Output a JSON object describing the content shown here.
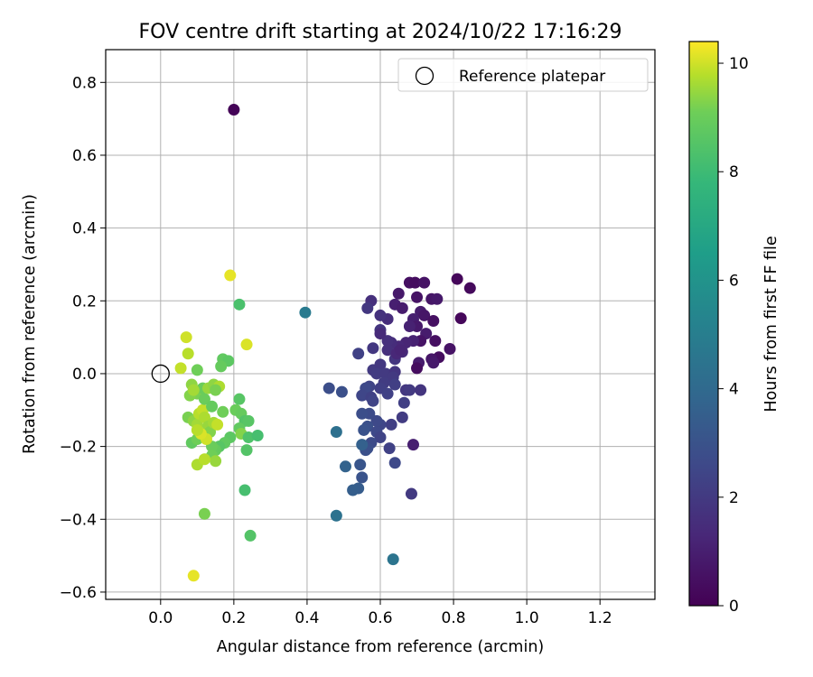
{
  "chart_data": {
    "type": "scatter",
    "title": "FOV centre drift starting at 2024/10/22 17:16:29",
    "xlabel": "Angular distance from reference (arcmin)",
    "ylabel": "Rotation from reference (arcmin)",
    "xlim": [
      -0.15,
      1.35
    ],
    "ylim": [
      -0.62,
      0.89
    ],
    "xticks": [
      0.0,
      0.2,
      0.4,
      0.6,
      0.8,
      1.0,
      1.2
    ],
    "xtick_labels": [
      "0.0",
      "0.2",
      "0.4",
      "0.6",
      "0.8",
      "1.0",
      "1.2"
    ],
    "yticks": [
      -0.6,
      -0.4,
      -0.2,
      0.0,
      0.2,
      0.4,
      0.6,
      0.8
    ],
    "ytick_labels": [
      "−0.6",
      "−0.4",
      "−0.2",
      "0.0",
      "0.2",
      "0.4",
      "0.6",
      "0.8"
    ],
    "grid": true,
    "legend": {
      "position": "top-right",
      "entries": [
        {
          "label": "Reference platepar",
          "marker": "open-circle"
        }
      ]
    },
    "reference_point": {
      "x": 0.0,
      "y": 0.0
    },
    "colorbar": {
      "label": "Hours from first FF file",
      "colormap": "viridis",
      "range": [
        0,
        10.4
      ],
      "ticks": [
        0,
        2,
        4,
        6,
        8,
        10
      ],
      "tick_labels": [
        "0",
        "2",
        "4",
        "6",
        "8",
        "10"
      ]
    },
    "points": [
      {
        "x": 0.2,
        "y": 0.725,
        "c": 0.1
      },
      {
        "x": 0.81,
        "y": 0.26,
        "c": 0.2
      },
      {
        "x": 0.845,
        "y": 0.235,
        "c": 0.3
      },
      {
        "x": 0.82,
        "y": 0.152,
        "c": 0.2
      },
      {
        "x": 0.68,
        "y": 0.25,
        "c": 0.5
      },
      {
        "x": 0.695,
        "y": 0.25,
        "c": 0.4
      },
      {
        "x": 0.72,
        "y": 0.25,
        "c": 0.6
      },
      {
        "x": 0.65,
        "y": 0.22,
        "c": 0.8
      },
      {
        "x": 0.64,
        "y": 0.19,
        "c": 1.0
      },
      {
        "x": 0.66,
        "y": 0.18,
        "c": 0.9
      },
      {
        "x": 0.74,
        "y": 0.205,
        "c": 0.7
      },
      {
        "x": 0.755,
        "y": 0.205,
        "c": 0.8
      },
      {
        "x": 0.7,
        "y": 0.21,
        "c": 0.6
      },
      {
        "x": 0.71,
        "y": 0.17,
        "c": 0.9
      },
      {
        "x": 0.72,
        "y": 0.16,
        "c": 0.7
      },
      {
        "x": 0.69,
        "y": 0.15,
        "c": 1.0
      },
      {
        "x": 0.745,
        "y": 0.145,
        "c": 0.5
      },
      {
        "x": 0.7,
        "y": 0.13,
        "c": 0.8
      },
      {
        "x": 0.68,
        "y": 0.13,
        "c": 1.1
      },
      {
        "x": 0.725,
        "y": 0.11,
        "c": 0.9
      },
      {
        "x": 0.71,
        "y": 0.09,
        "c": 0.6
      },
      {
        "x": 0.75,
        "y": 0.09,
        "c": 0.5
      },
      {
        "x": 0.79,
        "y": 0.068,
        "c": 0.6
      },
      {
        "x": 0.76,
        "y": 0.045,
        "c": 0.4
      },
      {
        "x": 0.74,
        "y": 0.04,
        "c": 0.7
      },
      {
        "x": 0.745,
        "y": 0.03,
        "c": 0.8
      },
      {
        "x": 0.705,
        "y": 0.03,
        "c": 0.9
      },
      {
        "x": 0.7,
        "y": 0.015,
        "c": 0.4
      },
      {
        "x": 0.69,
        "y": 0.09,
        "c": 1.1
      },
      {
        "x": 0.67,
        "y": 0.085,
        "c": 1.2
      },
      {
        "x": 0.65,
        "y": 0.075,
        "c": 1.3
      },
      {
        "x": 0.63,
        "y": 0.085,
        "c": 1.5
      },
      {
        "x": 0.62,
        "y": 0.09,
        "c": 1.6
      },
      {
        "x": 0.62,
        "y": 0.065,
        "c": 1.6
      },
      {
        "x": 0.66,
        "y": 0.06,
        "c": 1.4
      },
      {
        "x": 0.64,
        "y": 0.04,
        "c": 1.8
      },
      {
        "x": 0.645,
        "y": 0.055,
        "c": 1.3
      },
      {
        "x": 0.655,
        "y": 0.065,
        "c": 1.2
      },
      {
        "x": 0.62,
        "y": 0.15,
        "c": 1.5
      },
      {
        "x": 0.6,
        "y": 0.16,
        "c": 1.7
      },
      {
        "x": 0.575,
        "y": 0.2,
        "c": 1.6
      },
      {
        "x": 0.565,
        "y": 0.18,
        "c": 1.9
      },
      {
        "x": 0.6,
        "y": 0.12,
        "c": 1.8
      },
      {
        "x": 0.6,
        "y": 0.11,
        "c": 1.4
      },
      {
        "x": 0.58,
        "y": 0.07,
        "c": 1.9
      },
      {
        "x": 0.54,
        "y": 0.055,
        "c": 2.3
      },
      {
        "x": 0.58,
        "y": 0.01,
        "c": 2.0
      },
      {
        "x": 0.6,
        "y": 0.025,
        "c": 1.9
      },
      {
        "x": 0.59,
        "y": 0.0,
        "c": 2.1
      },
      {
        "x": 0.615,
        "y": 0.0,
        "c": 2.0
      },
      {
        "x": 0.64,
        "y": 0.005,
        "c": 1.8
      },
      {
        "x": 0.635,
        "y": -0.01,
        "c": 2.0
      },
      {
        "x": 0.64,
        "y": -0.03,
        "c": 2.2
      },
      {
        "x": 0.61,
        "y": -0.025,
        "c": 2.1
      },
      {
        "x": 0.6,
        "y": -0.04,
        "c": 2.2
      },
      {
        "x": 0.57,
        "y": -0.035,
        "c": 2.4
      },
      {
        "x": 0.56,
        "y": -0.04,
        "c": 2.6
      },
      {
        "x": 0.55,
        "y": -0.06,
        "c": 2.5
      },
      {
        "x": 0.575,
        "y": -0.065,
        "c": 2.3
      },
      {
        "x": 0.58,
        "y": -0.075,
        "c": 2.4
      },
      {
        "x": 0.62,
        "y": -0.055,
        "c": 2.3
      },
      {
        "x": 0.67,
        "y": -0.045,
        "c": 1.9
      },
      {
        "x": 0.68,
        "y": -0.045,
        "c": 2.0
      },
      {
        "x": 0.71,
        "y": -0.045,
        "c": 1.8
      },
      {
        "x": 0.665,
        "y": -0.08,
        "c": 2.2
      },
      {
        "x": 0.66,
        "y": -0.12,
        "c": 2.1
      },
      {
        "x": 0.63,
        "y": -0.14,
        "c": 2.2
      },
      {
        "x": 0.6,
        "y": -0.14,
        "c": 2.5
      },
      {
        "x": 0.59,
        "y": -0.13,
        "c": 2.6
      },
      {
        "x": 0.57,
        "y": -0.11,
        "c": 2.7
      },
      {
        "x": 0.55,
        "y": -0.11,
        "c": 2.8
      },
      {
        "x": 0.565,
        "y": -0.145,
        "c": 2.9
      },
      {
        "x": 0.555,
        "y": -0.155,
        "c": 3.0
      },
      {
        "x": 0.59,
        "y": -0.16,
        "c": 2.6
      },
      {
        "x": 0.6,
        "y": -0.175,
        "c": 2.4
      },
      {
        "x": 0.575,
        "y": -0.19,
        "c": 2.7
      },
      {
        "x": 0.565,
        "y": -0.205,
        "c": 2.8
      },
      {
        "x": 0.56,
        "y": -0.21,
        "c": 2.9
      },
      {
        "x": 0.625,
        "y": -0.205,
        "c": 2.3
      },
      {
        "x": 0.69,
        "y": -0.195,
        "c": 1.0
      },
      {
        "x": 0.64,
        "y": -0.245,
        "c": 2.6
      },
      {
        "x": 0.685,
        "y": -0.33,
        "c": 2.0
      },
      {
        "x": 0.46,
        "y": -0.04,
        "c": 2.8
      },
      {
        "x": 0.495,
        "y": -0.05,
        "c": 2.9
      },
      {
        "x": 0.545,
        "y": -0.25,
        "c": 3.1
      },
      {
        "x": 0.55,
        "y": -0.285,
        "c": 3.0
      },
      {
        "x": 0.54,
        "y": -0.315,
        "c": 3.4
      },
      {
        "x": 0.525,
        "y": -0.32,
        "c": 3.5
      },
      {
        "x": 0.505,
        "y": -0.255,
        "c": 3.7
      },
      {
        "x": 0.55,
        "y": -0.195,
        "c": 3.6
      },
      {
        "x": 0.48,
        "y": -0.16,
        "c": 4.3
      },
      {
        "x": 0.48,
        "y": -0.39,
        "c": 4.4
      },
      {
        "x": 0.635,
        "y": -0.51,
        "c": 4.5
      },
      {
        "x": 0.395,
        "y": 0.168,
        "c": 4.8
      },
      {
        "x": 0.19,
        "y": 0.27,
        "c": 10.2
      },
      {
        "x": 0.215,
        "y": 0.19,
        "c": 8.3
      },
      {
        "x": 0.235,
        "y": 0.08,
        "c": 10.1
      },
      {
        "x": 0.07,
        "y": 0.1,
        "c": 10.0
      },
      {
        "x": 0.075,
        "y": 0.055,
        "c": 9.8
      },
      {
        "x": 0.1,
        "y": 0.01,
        "c": 9.1
      },
      {
        "x": 0.1,
        "y": -0.055,
        "c": 9.2
      },
      {
        "x": 0.115,
        "y": -0.04,
        "c": 9.0
      },
      {
        "x": 0.08,
        "y": -0.06,
        "c": 9.3
      },
      {
        "x": 0.085,
        "y": -0.03,
        "c": 9.4
      },
      {
        "x": 0.09,
        "y": -0.045,
        "c": 9.6
      },
      {
        "x": 0.13,
        "y": -0.04,
        "c": 9.5
      },
      {
        "x": 0.145,
        "y": -0.03,
        "c": 9.4
      },
      {
        "x": 0.16,
        "y": -0.035,
        "c": 9.7
      },
      {
        "x": 0.15,
        "y": -0.045,
        "c": 9.2
      },
      {
        "x": 0.17,
        "y": 0.04,
        "c": 8.8
      },
      {
        "x": 0.185,
        "y": 0.035,
        "c": 8.7
      },
      {
        "x": 0.165,
        "y": 0.02,
        "c": 8.9
      },
      {
        "x": 0.215,
        "y": -0.07,
        "c": 8.6
      },
      {
        "x": 0.205,
        "y": -0.1,
        "c": 9.0
      },
      {
        "x": 0.22,
        "y": -0.11,
        "c": 8.9
      },
      {
        "x": 0.23,
        "y": -0.13,
        "c": 8.5
      },
      {
        "x": 0.24,
        "y": -0.13,
        "c": 8.6
      },
      {
        "x": 0.215,
        "y": -0.15,
        "c": 8.8
      },
      {
        "x": 0.22,
        "y": -0.165,
        "c": 9.3
      },
      {
        "x": 0.24,
        "y": -0.175,
        "c": 8.4
      },
      {
        "x": 0.265,
        "y": -0.17,
        "c": 8.2
      },
      {
        "x": 0.235,
        "y": -0.21,
        "c": 8.5
      },
      {
        "x": 0.19,
        "y": -0.175,
        "c": 8.7
      },
      {
        "x": 0.175,
        "y": -0.19,
        "c": 8.8
      },
      {
        "x": 0.16,
        "y": -0.2,
        "c": 8.6
      },
      {
        "x": 0.15,
        "y": -0.21,
        "c": 8.9
      },
      {
        "x": 0.14,
        "y": -0.2,
        "c": 9.0
      },
      {
        "x": 0.14,
        "y": -0.225,
        "c": 9.1
      },
      {
        "x": 0.15,
        "y": -0.24,
        "c": 9.5
      },
      {
        "x": 0.1,
        "y": -0.25,
        "c": 9.7
      },
      {
        "x": 0.12,
        "y": -0.235,
        "c": 9.8
      },
      {
        "x": 0.085,
        "y": -0.19,
        "c": 8.8
      },
      {
        "x": 0.1,
        "y": -0.18,
        "c": 9.1
      },
      {
        "x": 0.075,
        "y": -0.12,
        "c": 9.2
      },
      {
        "x": 0.09,
        "y": -0.13,
        "c": 9.4
      },
      {
        "x": 0.1,
        "y": -0.14,
        "c": 9.6
      },
      {
        "x": 0.105,
        "y": -0.11,
        "c": 9.8
      },
      {
        "x": 0.115,
        "y": -0.1,
        "c": 9.9
      },
      {
        "x": 0.12,
        "y": -0.12,
        "c": 9.7
      },
      {
        "x": 0.13,
        "y": -0.145,
        "c": 9.5
      },
      {
        "x": 0.135,
        "y": -0.16,
        "c": 9.3
      },
      {
        "x": 0.145,
        "y": -0.135,
        "c": 9.6
      },
      {
        "x": 0.155,
        "y": -0.14,
        "c": 9.9
      },
      {
        "x": 0.125,
        "y": -0.18,
        "c": 10.0
      },
      {
        "x": 0.11,
        "y": -0.165,
        "c": 10.1
      },
      {
        "x": 0.1,
        "y": -0.155,
        "c": 9.8
      },
      {
        "x": 0.12,
        "y": -0.07,
        "c": 9.0
      },
      {
        "x": 0.14,
        "y": -0.09,
        "c": 8.9
      },
      {
        "x": 0.17,
        "y": -0.105,
        "c": 9.1
      },
      {
        "x": 0.055,
        "y": 0.015,
        "c": 9.9
      },
      {
        "x": 0.12,
        "y": -0.385,
        "c": 9.2
      },
      {
        "x": 0.09,
        "y": -0.555,
        "c": 10.2
      },
      {
        "x": 0.23,
        "y": -0.32,
        "c": 8.2
      },
      {
        "x": 0.245,
        "y": -0.445,
        "c": 8.5
      }
    ]
  }
}
